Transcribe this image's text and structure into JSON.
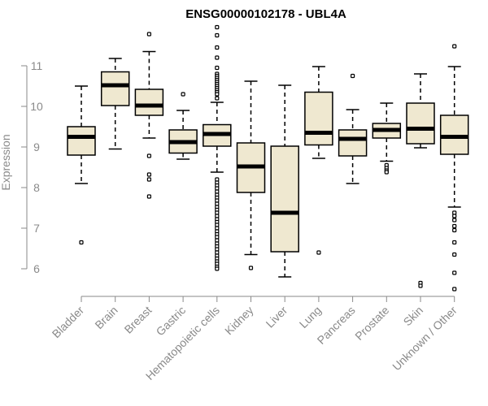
{
  "chart_data": {
    "type": "boxplot",
    "title": "ENSG00000102178 - UBL4A",
    "ylabel": "Expression",
    "ylim": [
      5.5,
      11.7
    ],
    "yticks": [
      6,
      7,
      8,
      9,
      10,
      11
    ],
    "box_fill": "#efe8d0",
    "categories": [
      "Bladder",
      "Brain",
      "Breast",
      "Gastric",
      "Hematopoietic cells",
      "Kidney",
      "Liver",
      "Lung",
      "Pancreas",
      "Prostate",
      "Skin",
      "Unknown / Other"
    ],
    "boxes": [
      {
        "whisker_low": 8.1,
        "q1": 8.8,
        "median": 9.25,
        "q3": 9.5,
        "whisker_high": 10.5,
        "outliers": [
          6.65
        ]
      },
      {
        "whisker_low": 8.95,
        "q1": 10.02,
        "median": 10.52,
        "q3": 10.85,
        "whisker_high": 11.18,
        "outliers": []
      },
      {
        "whisker_low": 9.22,
        "q1": 9.78,
        "median": 10.02,
        "q3": 10.42,
        "whisker_high": 11.35,
        "outliers": [
          11.78,
          8.78,
          8.32,
          8.2,
          7.78
        ]
      },
      {
        "whisker_low": 8.7,
        "q1": 8.85,
        "median": 9.12,
        "q3": 9.42,
        "whisker_high": 9.9,
        "outliers": [
          10.3
        ]
      },
      {
        "whisker_low": 8.38,
        "q1": 9.02,
        "median": 9.32,
        "q3": 9.55,
        "whisker_high": 10.1,
        "outliers": [
          11.95,
          11.75,
          11.45,
          11.2,
          10.95,
          10.8,
          10.75,
          10.7,
          10.65,
          10.6,
          10.55,
          10.5,
          10.45,
          10.4,
          10.35,
          10.3,
          10.2,
          8.2,
          8.12,
          8.05,
          7.98,
          7.9,
          7.82,
          7.75,
          7.68,
          7.6,
          7.52,
          7.45,
          7.38,
          7.3,
          7.22,
          7.15,
          7.08,
          7.0,
          6.92,
          6.85,
          6.78,
          6.7,
          6.62,
          6.55,
          6.48,
          6.4,
          6.32,
          6.25,
          6.18,
          6.12,
          6.05,
          6.0
        ]
      },
      {
        "whisker_low": 6.35,
        "q1": 7.88,
        "median": 8.52,
        "q3": 9.1,
        "whisker_high": 10.62,
        "outliers": [
          6.02
        ]
      },
      {
        "whisker_low": 5.8,
        "q1": 6.42,
        "median": 7.38,
        "q3": 9.02,
        "whisker_high": 10.52,
        "outliers": []
      },
      {
        "whisker_low": 8.72,
        "q1": 9.05,
        "median": 9.35,
        "q3": 10.35,
        "whisker_high": 10.98,
        "outliers": [
          6.4
        ]
      },
      {
        "whisker_low": 8.1,
        "q1": 8.78,
        "median": 9.2,
        "q3": 9.42,
        "whisker_high": 9.92,
        "outliers": [
          10.75
        ]
      },
      {
        "whisker_low": 8.65,
        "q1": 9.22,
        "median": 9.42,
        "q3": 9.58,
        "whisker_high": 10.08,
        "outliers": [
          8.55,
          8.48,
          8.42,
          8.38
        ]
      },
      {
        "whisker_low": 8.98,
        "q1": 9.08,
        "median": 9.45,
        "q3": 10.08,
        "whisker_high": 10.8,
        "outliers": [
          5.65,
          5.58
        ]
      },
      {
        "whisker_low": 7.52,
        "q1": 8.82,
        "median": 9.25,
        "q3": 9.78,
        "whisker_high": 10.98,
        "outliers": [
          11.48,
          7.38,
          7.3,
          7.2,
          7.05,
          6.95,
          6.65,
          6.35,
          5.9,
          5.5
        ]
      }
    ]
  }
}
